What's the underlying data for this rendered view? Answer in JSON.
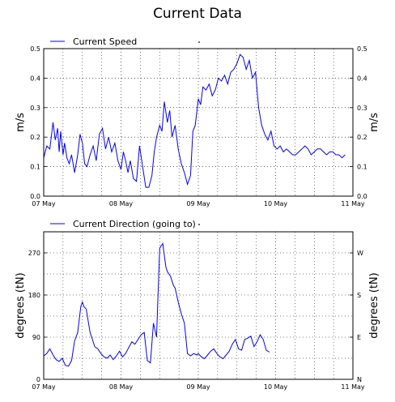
{
  "title": "Current Data",
  "chart_data": [
    {
      "type": "line",
      "legend": "Current Speed",
      "ylabel": "m/s",
      "ylabel_right": "m/s",
      "color": "#0000ff",
      "x_ticks": [
        "07 May",
        "08 May",
        "09 May",
        "10 May",
        "11 May"
      ],
      "xlim": [
        0,
        4
      ],
      "ylim": [
        0,
        0.5
      ],
      "y_ticks": [
        "0.0",
        "0.1",
        "0.2",
        "0.3",
        "0.4",
        "0.5"
      ],
      "y_ticks_right": [
        "0.0",
        "0.1",
        "0.2",
        "0.3",
        "0.4",
        "0.5"
      ],
      "grid": true,
      "x": [
        0.0,
        0.04,
        0.08,
        0.12,
        0.15,
        0.18,
        0.2,
        0.22,
        0.25,
        0.27,
        0.3,
        0.33,
        0.36,
        0.4,
        0.44,
        0.47,
        0.5,
        0.53,
        0.56,
        0.6,
        0.64,
        0.68,
        0.72,
        0.76,
        0.8,
        0.84,
        0.88,
        0.92,
        0.96,
        1.0,
        1.03,
        1.06,
        1.09,
        1.12,
        1.16,
        1.2,
        1.24,
        1.28,
        1.32,
        1.36,
        1.4,
        1.43,
        1.46,
        1.5,
        1.53,
        1.56,
        1.6,
        1.63,
        1.66,
        1.7,
        1.74,
        1.78,
        1.82,
        1.86,
        1.9,
        1.93,
        1.96,
        2.0,
        2.03,
        2.06,
        2.1,
        2.14,
        2.18,
        2.22,
        2.26,
        2.3,
        2.34,
        2.38,
        2.42,
        2.46,
        2.5,
        2.54,
        2.58,
        2.62,
        2.66,
        2.7,
        2.74,
        2.78,
        2.82,
        2.86,
        2.9,
        2.94,
        2.98,
        3.02,
        3.06,
        3.1,
        3.14,
        3.18,
        3.22,
        3.26,
        3.3,
        3.34,
        3.38,
        3.42,
        3.46,
        3.5,
        3.54,
        3.58,
        3.62,
        3.66,
        3.7,
        3.74,
        3.78,
        3.82,
        3.86,
        3.9
      ],
      "y": [
        0.13,
        0.17,
        0.16,
        0.25,
        0.19,
        0.23,
        0.15,
        0.22,
        0.14,
        0.18,
        0.13,
        0.11,
        0.14,
        0.08,
        0.14,
        0.21,
        0.18,
        0.11,
        0.1,
        0.14,
        0.17,
        0.12,
        0.21,
        0.23,
        0.16,
        0.2,
        0.15,
        0.18,
        0.12,
        0.09,
        0.15,
        0.12,
        0.08,
        0.12,
        0.06,
        0.05,
        0.17,
        0.1,
        0.03,
        0.03,
        0.07,
        0.15,
        0.2,
        0.24,
        0.22,
        0.32,
        0.25,
        0.29,
        0.2,
        0.24,
        0.16,
        0.11,
        0.08,
        0.04,
        0.07,
        0.22,
        0.24,
        0.33,
        0.31,
        0.37,
        0.36,
        0.38,
        0.34,
        0.36,
        0.4,
        0.39,
        0.41,
        0.38,
        0.42,
        0.43,
        0.45,
        0.48,
        0.47,
        0.43,
        0.46,
        0.4,
        0.42,
        0.3,
        0.24,
        0.21,
        0.19,
        0.22,
        0.17,
        0.16,
        0.17,
        0.15,
        0.16,
        0.15,
        0.14,
        0.14,
        0.15,
        0.16,
        0.17,
        0.16,
        0.14,
        0.15,
        0.16,
        0.16,
        0.15,
        0.14,
        0.15,
        0.15,
        0.14,
        0.14,
        0.13,
        0.14
      ],
      "last_x": 3.9
    },
    {
      "type": "line",
      "legend": "Current Direction (going to)",
      "ylabel": "degrees (tN)",
      "ylabel_right": "degrees (tN)",
      "color": "#0000ff",
      "x_ticks": [
        "07 May",
        "08 May",
        "09 May",
        "10 May",
        "11 May"
      ],
      "xlim": [
        0,
        4
      ],
      "ylim": [
        0,
        315
      ],
      "y_ticks": [
        "0",
        "90",
        "180",
        "270"
      ],
      "y_ticks_right": [
        "N",
        "E",
        "S",
        "W"
      ],
      "grid": true,
      "x": [
        0.0,
        0.04,
        0.08,
        0.12,
        0.16,
        0.2,
        0.24,
        0.28,
        0.32,
        0.36,
        0.4,
        0.44,
        0.48,
        0.5,
        0.52,
        0.55,
        0.58,
        0.6,
        0.63,
        0.66,
        0.7,
        0.74,
        0.78,
        0.82,
        0.86,
        0.9,
        0.94,
        0.98,
        1.02,
        1.06,
        1.1,
        1.14,
        1.18,
        1.22,
        1.26,
        1.3,
        1.34,
        1.38,
        1.42,
        1.46,
        1.5,
        1.54,
        1.58,
        1.6,
        1.62,
        1.64,
        1.66,
        1.68,
        1.7,
        1.74,
        1.78,
        1.82,
        1.86,
        1.9,
        1.94,
        1.98,
        2.0,
        2.04,
        2.08,
        2.12,
        2.16,
        2.2,
        2.24,
        2.28,
        2.32,
        2.36,
        2.4,
        2.44,
        2.48,
        2.52,
        2.56,
        2.6,
        2.64,
        2.68,
        2.72,
        2.76,
        2.8,
        2.84,
        2.88,
        2.92
      ],
      "y": [
        50,
        55,
        65,
        52,
        42,
        38,
        45,
        30,
        28,
        40,
        82,
        100,
        155,
        165,
        155,
        150,
        120,
        100,
        85,
        70,
        65,
        55,
        48,
        45,
        52,
        42,
        50,
        60,
        48,
        55,
        68,
        80,
        75,
        85,
        95,
        100,
        40,
        35,
        120,
        90,
        280,
        290,
        240,
        230,
        225,
        220,
        210,
        200,
        195,
        165,
        140,
        120,
        55,
        50,
        55,
        52,
        55,
        48,
        44,
        52,
        60,
        65,
        55,
        48,
        44,
        52,
        60,
        75,
        85,
        65,
        62,
        85,
        88,
        92,
        70,
        80,
        95,
        85,
        62,
        58
      ]
    }
  ]
}
